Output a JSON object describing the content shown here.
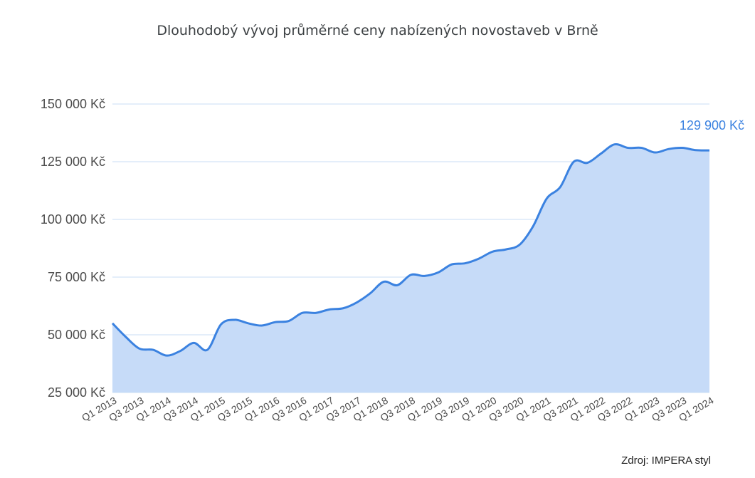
{
  "chart_data": {
    "type": "area",
    "title": "Dlouhodobý vývoj průměrné ceny nabízených novostaveb v Brně",
    "source": "Zdroj: IMPERA styl",
    "ylim": [
      25000,
      150000
    ],
    "y_ticks": [
      25000,
      50000,
      75000,
      100000,
      125000,
      150000
    ],
    "y_tick_labels": [
      "25 000 Kč",
      "50 000 Kč",
      "75 000 Kč",
      "100 000 Kč",
      "125 000 Kč",
      "150 000 Kč"
    ],
    "x_tick_labels": [
      "Q1 2013",
      "Q3 2013",
      "Q1 2014",
      "Q3 2014",
      "Q1 2015",
      "Q3 2015",
      "Q1 2016",
      "Q3 2016",
      "Q1 2017",
      "Q3 2017",
      "Q1 2018",
      "Q3 2018",
      "Q1 2019",
      "Q3 2019",
      "Q1 2020",
      "Q3 2020",
      "Q1 2021",
      "Q3 2021",
      "Q1 2022",
      "Q3 2022",
      "Q1 2023",
      "Q3 2023",
      "Q1 2024"
    ],
    "categories": [
      "Q1 2013",
      "Q2 2013",
      "Q3 2013",
      "Q4 2013",
      "Q1 2014",
      "Q2 2014",
      "Q3 2014",
      "Q4 2014",
      "Q1 2015",
      "Q2 2015",
      "Q3 2015",
      "Q4 2015",
      "Q1 2016",
      "Q2 2016",
      "Q3 2016",
      "Q4 2016",
      "Q1 2017",
      "Q2 2017",
      "Q3 2017",
      "Q4 2017",
      "Q1 2018",
      "Q2 2018",
      "Q3 2018",
      "Q4 2018",
      "Q1 2019",
      "Q2 2019",
      "Q3 2019",
      "Q4 2019",
      "Q1 2020",
      "Q2 2020",
      "Q3 2020",
      "Q4 2020",
      "Q1 2021",
      "Q2 2021",
      "Q3 2021",
      "Q4 2021",
      "Q1 2022",
      "Q2 2022",
      "Q3 2022",
      "Q4 2022",
      "Q1 2023",
      "Q2 2023",
      "Q3 2023",
      "Q4 2023",
      "Q1 2024"
    ],
    "series": [
      {
        "values": [
          55000,
          49000,
          44000,
          43500,
          41000,
          43000,
          46500,
          43500,
          54500,
          56500,
          55000,
          54000,
          55500,
          56000,
          59500,
          59500,
          61000,
          61500,
          64000,
          68000,
          73000,
          71500,
          76000,
          75500,
          77000,
          80500,
          81000,
          83000,
          86000,
          87000,
          89000,
          97000,
          109000,
          114000,
          125000,
          124500,
          128500,
          132500,
          131000,
          131000,
          129000,
          130500,
          131000,
          130000,
          129900
        ],
        "color": "#3b82e0",
        "fill": "#c6dbf8"
      }
    ],
    "last_value_label": "129 900 Kč",
    "grid": true,
    "grid_color": "#c9ddf5"
  }
}
